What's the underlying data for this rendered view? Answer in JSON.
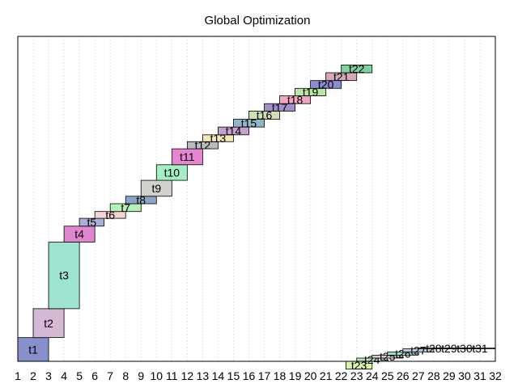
{
  "chart_data": {
    "type": "bar",
    "title": "Global Optimization",
    "xlim": [
      1,
      32
    ],
    "x_ticks": [
      "1",
      "2",
      "3",
      "4",
      "5",
      "6",
      "7",
      "8",
      "9",
      "10",
      "11",
      "12",
      "13",
      "14",
      "15",
      "16",
      "17",
      "18",
      "19",
      "20",
      "21",
      "22",
      "23",
      "24",
      "25",
      "26",
      "27",
      "28",
      "29",
      "30",
      "31",
      "32"
    ],
    "ylim": [
      0,
      1
    ],
    "grid": true,
    "tasks": [
      {
        "label": "t1",
        "start": 1,
        "end": 3,
        "bottom": 0.0,
        "top": 0.073,
        "color": "#8690cc"
      },
      {
        "label": "t2",
        "start": 2,
        "end": 4,
        "bottom": 0.073,
        "top": 0.162,
        "color": "#d5b8d3"
      },
      {
        "label": "t3",
        "start": 3,
        "end": 5,
        "bottom": 0.162,
        "top": 0.367,
        "color": "#9de3cf"
      },
      {
        "label": "t4",
        "start": 4,
        "end": 6,
        "bottom": 0.367,
        "top": 0.416,
        "color": "#df86cf"
      },
      {
        "label": "t5",
        "start": 5,
        "end": 6.6,
        "bottom": 0.416,
        "top": 0.44,
        "color": "#aab0d6"
      },
      {
        "label": "t6",
        "start": 6,
        "end": 8,
        "bottom": 0.44,
        "top": 0.461,
        "color": "#f2d3cf"
      },
      {
        "label": "t7",
        "start": 7,
        "end": 9,
        "bottom": 0.461,
        "top": 0.485,
        "color": "#b5f2b5"
      },
      {
        "label": "t8",
        "start": 8,
        "end": 10,
        "bottom": 0.485,
        "top": 0.508,
        "color": "#8aa6c8"
      },
      {
        "label": "t9",
        "start": 9,
        "end": 11,
        "bottom": 0.508,
        "top": 0.557,
        "color": "#d2d2cc"
      },
      {
        "label": "t10",
        "start": 10,
        "end": 12,
        "bottom": 0.557,
        "top": 0.605,
        "color": "#a3efc3"
      },
      {
        "label": "t11",
        "start": 11,
        "end": 13,
        "bottom": 0.605,
        "top": 0.654,
        "color": "#e487cf"
      },
      {
        "label": "t12",
        "start": 12,
        "end": 14,
        "bottom": 0.654,
        "top": 0.676,
        "color": "#b8bcc0"
      },
      {
        "label": "t13",
        "start": 13,
        "end": 15,
        "bottom": 0.676,
        "top": 0.697,
        "color": "#f2eab6"
      },
      {
        "label": "t14",
        "start": 14,
        "end": 16,
        "bottom": 0.697,
        "top": 0.721,
        "color": "#c8a0cf"
      },
      {
        "label": "t15",
        "start": 15,
        "end": 17,
        "bottom": 0.721,
        "top": 0.745,
        "color": "#8fb8c5"
      },
      {
        "label": "t16",
        "start": 16,
        "end": 18,
        "bottom": 0.745,
        "top": 0.77,
        "color": "#cfe0b8"
      },
      {
        "label": "t17",
        "start": 17,
        "end": 19,
        "bottom": 0.77,
        "top": 0.793,
        "color": "#a38fc9"
      },
      {
        "label": "t18",
        "start": 18,
        "end": 20,
        "bottom": 0.793,
        "top": 0.817,
        "color": "#f0a8c0"
      },
      {
        "label": "t19",
        "start": 19,
        "end": 21,
        "bottom": 0.817,
        "top": 0.84,
        "color": "#b8e6a3"
      },
      {
        "label": "t20",
        "start": 20,
        "end": 22,
        "bottom": 0.84,
        "top": 0.864,
        "color": "#8c8cd0"
      },
      {
        "label": "t21",
        "start": 21,
        "end": 23,
        "bottom": 0.864,
        "top": 0.888,
        "color": "#d7a8b8"
      },
      {
        "label": "t22",
        "start": 22,
        "end": 24,
        "bottom": 0.888,
        "top": 0.912,
        "color": "#7fcf9f"
      },
      {
        "label": "t23",
        "start": 22.3,
        "end": 24,
        "bottom": -0.024,
        "top": 0.0,
        "color": "#d6f5a8"
      },
      {
        "label": "t24",
        "start": 23,
        "end": 25,
        "bottom": 0.0,
        "top": 0.01,
        "color": "#bde0c0"
      },
      {
        "label": "t25",
        "start": 24,
        "end": 26,
        "bottom": 0.01,
        "top": 0.019,
        "color": "#e0c8d8"
      },
      {
        "label": "t26",
        "start": 25,
        "end": 27,
        "bottom": 0.019,
        "top": 0.029,
        "color": "#9fe0c0"
      },
      {
        "label": "t27",
        "start": 26,
        "end": 28,
        "bottom": 0.029,
        "top": 0.039,
        "color": "#c0c8e0"
      },
      {
        "label": "t28",
        "start": 27,
        "end": 29,
        "bottom": 0.039,
        "top": 0.041,
        "color": "#e8d8c8"
      },
      {
        "label": "t29",
        "start": 28,
        "end": 30,
        "bottom": 0.039,
        "top": 0.041,
        "color": "#d0d0d0"
      },
      {
        "label": "t30",
        "start": 29,
        "end": 31,
        "bottom": 0.039,
        "top": 0.041,
        "color": "#d8d8e8"
      },
      {
        "label": "t31",
        "start": 30,
        "end": 32,
        "bottom": 0.039,
        "top": 0.041,
        "color": "#e0e0d0"
      }
    ]
  }
}
